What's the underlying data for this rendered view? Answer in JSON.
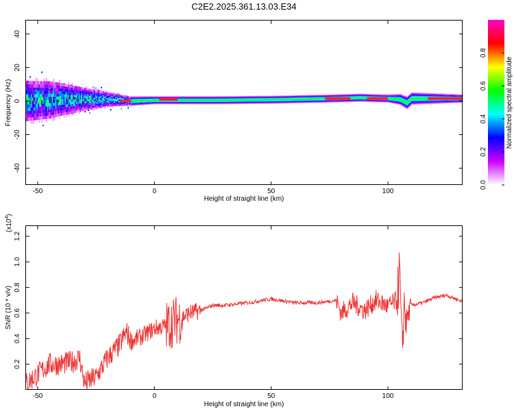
{
  "title": "C2E2.2025.361.13.03.E34",
  "chart_data": [
    {
      "type": "heatmap",
      "xlabel": "Height of straight line (km)",
      "ylabel": "Frequency (Hz)",
      "xlim": [
        -55,
        132
      ],
      "ylim": [
        -50,
        48
      ],
      "x_ticks": [
        -50,
        0,
        50,
        100
      ],
      "y_ticks": [
        -40,
        -20,
        0,
        20,
        40
      ],
      "colorbar": {
        "label": "Normalized spectral amplitude",
        "range": [
          0,
          1
        ],
        "ticks": [
          0.0,
          0.2,
          0.4,
          0.6,
          0.8
        ],
        "colors": [
          "#ffffff",
          "#cc00ff",
          "#0000ff",
          "#00ffff",
          "#00ff00",
          "#ffff00",
          "#ff0000",
          "#ff00cc"
        ]
      },
      "band_center_hz": [
        [
          -55,
          0
        ],
        [
          -40,
          1
        ],
        [
          -20,
          1
        ],
        [
          -10,
          0
        ],
        [
          0,
          0.5
        ],
        [
          25,
          0.5
        ],
        [
          50,
          0.8
        ],
        [
          75,
          1.5
        ],
        [
          88,
          2
        ],
        [
          100,
          1.5
        ],
        [
          105,
          1
        ],
        [
          108,
          -1
        ],
        [
          110,
          1.5
        ],
        [
          132,
          1.5
        ]
      ],
      "band_halfwidth_hz": [
        [
          -55,
          14
        ],
        [
          -45,
          13
        ],
        [
          -30,
          8
        ],
        [
          -20,
          5
        ],
        [
          -10,
          3
        ],
        [
          0,
          2.5
        ],
        [
          50,
          2.5
        ],
        [
          100,
          2.5
        ],
        [
          108,
          4
        ],
        [
          132,
          2.5
        ]
      ],
      "red_segments": [
        {
          "x": [
            -15,
            -10
          ],
          "y": 0
        },
        {
          "x": [
            2,
            10
          ],
          "y": 1
        },
        {
          "x": [
            73,
            84
          ],
          "y": 1.5
        },
        {
          "x": [
            91,
            100
          ],
          "y": 1.5
        },
        {
          "x": [
            117,
            132
          ],
          "y": 1.5
        }
      ]
    },
    {
      "type": "line",
      "xlabel": "Height of straight line (km)",
      "ylabel": "SNR (10 * v/v)",
      "y_multiplier_label": "(x10",
      "y_multiplier_exp": "4",
      "y_multiplier_close": ")",
      "xlim": [
        -55,
        132
      ],
      "ylim": [
        0,
        1.28
      ],
      "x_ticks": [
        -50,
        0,
        50,
        100
      ],
      "y_ticks": [
        0.2,
        0.4,
        0.6,
        0.8,
        1.0,
        1.2
      ],
      "y_tick_labels": [
        "0.2",
        "0.4",
        "0.6",
        "0.8",
        "1.0",
        "1.2"
      ],
      "color": "#ee3333",
      "series": [
        {
          "x": [
            -55,
            -50,
            -45,
            -40,
            -35,
            -32,
            -30,
            -25,
            -20,
            -15,
            -12,
            -10,
            -5,
            0,
            5,
            10,
            15,
            20,
            25,
            30,
            40,
            50,
            60,
            70,
            78,
            80,
            85,
            90,
            95,
            100,
            104,
            105,
            106,
            107,
            108,
            110,
            115,
            120,
            125,
            132
          ],
          "y": [
            0.05,
            0.12,
            0.2,
            0.2,
            0.22,
            0.25,
            0.05,
            0.1,
            0.25,
            0.35,
            0.45,
            0.38,
            0.42,
            0.48,
            0.5,
            0.55,
            0.6,
            0.62,
            0.66,
            0.66,
            0.68,
            0.71,
            0.68,
            0.68,
            0.7,
            0.6,
            0.68,
            0.62,
            0.7,
            0.65,
            0.7,
            0.95,
            0.3,
            0.66,
            0.55,
            0.66,
            0.68,
            0.72,
            0.74,
            0.69
          ]
        }
      ]
    }
  ]
}
